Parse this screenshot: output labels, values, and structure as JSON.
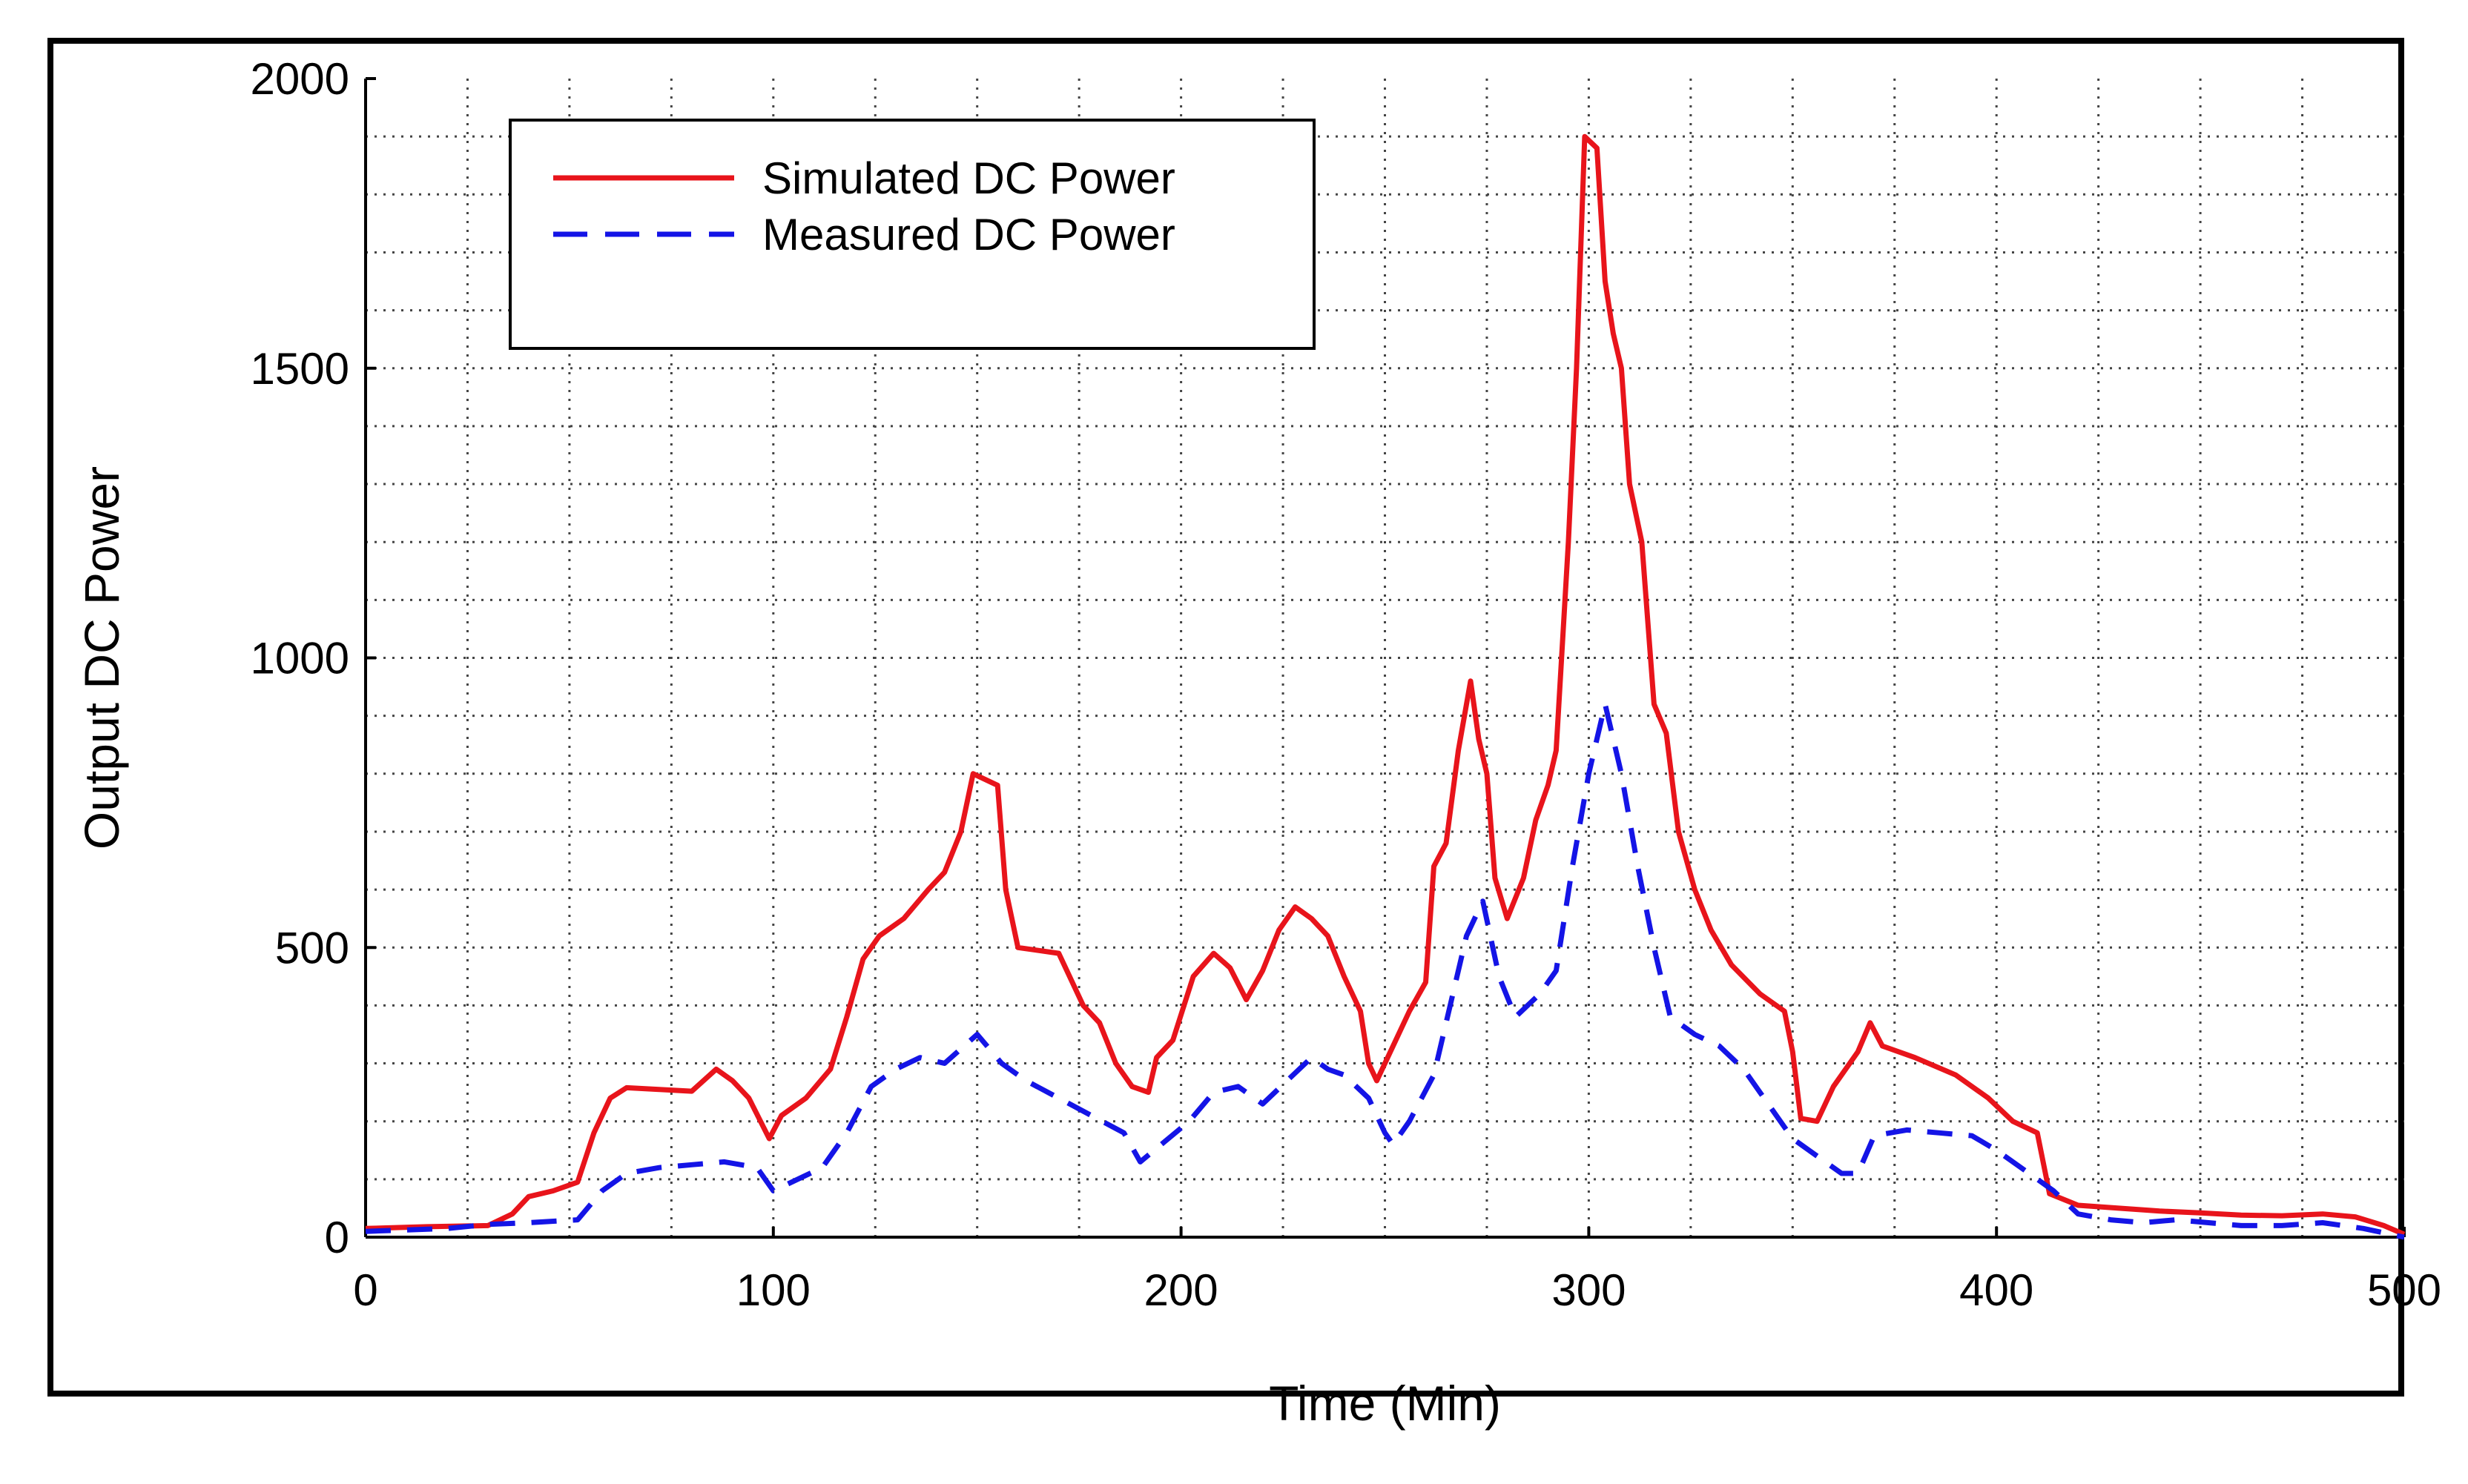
{
  "chart_data": {
    "type": "line",
    "title": "",
    "xlabel": "Time (Min)",
    "ylabel": "Output DC Power",
    "xlim": [
      0,
      500
    ],
    "ylim": [
      0,
      2000
    ],
    "xticks": [
      0,
      100,
      200,
      300,
      400,
      500
    ],
    "yticks": [
      0,
      500,
      1000,
      1500,
      2000
    ],
    "xtick_labels": [
      "0",
      "100",
      "200",
      "300",
      "400",
      "500"
    ],
    "ytick_labels": [
      "0",
      "500",
      "1000",
      "1500",
      "2000"
    ],
    "grid": true,
    "legend_position": "top-left",
    "series": [
      {
        "name": "Simulated DC Power",
        "color": "#e8141b",
        "style": "solid",
        "points": [
          [
            0,
            15
          ],
          [
            15,
            18
          ],
          [
            30,
            20
          ],
          [
            36,
            40
          ],
          [
            40,
            70
          ],
          [
            46,
            80
          ],
          [
            52,
            95
          ],
          [
            56,
            180
          ],
          [
            60,
            240
          ],
          [
            64,
            258
          ],
          [
            72,
            255
          ],
          [
            80,
            252
          ],
          [
            86,
            290
          ],
          [
            90,
            270
          ],
          [
            94,
            240
          ],
          [
            99,
            170
          ],
          [
            102,
            210
          ],
          [
            108,
            240
          ],
          [
            114,
            290
          ],
          [
            118,
            380
          ],
          [
            122,
            480
          ],
          [
            126,
            520
          ],
          [
            132,
            550
          ],
          [
            138,
            600
          ],
          [
            142,
            630
          ],
          [
            146,
            700
          ],
          [
            149,
            800
          ],
          [
            155,
            780
          ],
          [
            157,
            600
          ],
          [
            160,
            500
          ],
          [
            165,
            495
          ],
          [
            170,
            490
          ],
          [
            176,
            400
          ],
          [
            180,
            370
          ],
          [
            184,
            300
          ],
          [
            188,
            260
          ],
          [
            192,
            250
          ],
          [
            194,
            310
          ],
          [
            198,
            340
          ],
          [
            203,
            450
          ],
          [
            208,
            490
          ],
          [
            212,
            465
          ],
          [
            216,
            410
          ],
          [
            220,
            460
          ],
          [
            224,
            530
          ],
          [
            228,
            570
          ],
          [
            232,
            550
          ],
          [
            236,
            520
          ],
          [
            240,
            450
          ],
          [
            244,
            390
          ],
          [
            246,
            300
          ],
          [
            248,
            270
          ],
          [
            252,
            330
          ],
          [
            256,
            390
          ],
          [
            260,
            440
          ],
          [
            262,
            640
          ],
          [
            265,
            680
          ],
          [
            268,
            840
          ],
          [
            271,
            960
          ],
          [
            273,
            860
          ],
          [
            275,
            800
          ],
          [
            277,
            620
          ],
          [
            280,
            550
          ],
          [
            284,
            620
          ],
          [
            287,
            720
          ],
          [
            290,
            780
          ],
          [
            292,
            840
          ],
          [
            295,
            1200
          ],
          [
            297,
            1500
          ],
          [
            299,
            1900
          ],
          [
            302,
            1880
          ],
          [
            304,
            1650
          ],
          [
            306,
            1560
          ],
          [
            308,
            1500
          ],
          [
            310,
            1300
          ],
          [
            313,
            1200
          ],
          [
            316,
            920
          ],
          [
            319,
            870
          ],
          [
            322,
            700
          ],
          [
            326,
            600
          ],
          [
            330,
            530
          ],
          [
            335,
            470
          ],
          [
            342,
            420
          ],
          [
            348,
            390
          ],
          [
            350,
            320
          ],
          [
            352,
            205
          ],
          [
            356,
            200
          ],
          [
            360,
            260
          ],
          [
            366,
            320
          ],
          [
            369,
            370
          ],
          [
            372,
            330
          ],
          [
            380,
            310
          ],
          [
            390,
            280
          ],
          [
            398,
            240
          ],
          [
            404,
            200
          ],
          [
            410,
            180
          ],
          [
            413,
            75
          ],
          [
            420,
            55
          ],
          [
            430,
            50
          ],
          [
            440,
            45
          ],
          [
            450,
            42
          ],
          [
            460,
            38
          ],
          [
            470,
            37
          ],
          [
            480,
            40
          ],
          [
            488,
            35
          ],
          [
            495,
            20
          ],
          [
            500,
            5
          ]
        ]
      },
      {
        "name": "Measured DC Power",
        "color": "#1414e6",
        "style": "dashed",
        "points": [
          [
            0,
            10
          ],
          [
            20,
            15
          ],
          [
            30,
            22
          ],
          [
            40,
            25
          ],
          [
            52,
            30
          ],
          [
            58,
            80
          ],
          [
            64,
            110
          ],
          [
            72,
            120
          ],
          [
            80,
            125
          ],
          [
            88,
            130
          ],
          [
            96,
            120
          ],
          [
            100,
            80
          ],
          [
            106,
            100
          ],
          [
            112,
            120
          ],
          [
            118,
            180
          ],
          [
            124,
            260
          ],
          [
            130,
            290
          ],
          [
            136,
            310
          ],
          [
            142,
            300
          ],
          [
            150,
            350
          ],
          [
            156,
            300
          ],
          [
            162,
            270
          ],
          [
            170,
            240
          ],
          [
            178,
            210
          ],
          [
            186,
            180
          ],
          [
            190,
            130
          ],
          [
            196,
            165
          ],
          [
            202,
            200
          ],
          [
            208,
            250
          ],
          [
            214,
            260
          ],
          [
            220,
            230
          ],
          [
            226,
            270
          ],
          [
            232,
            310
          ],
          [
            236,
            290
          ],
          [
            240,
            280
          ],
          [
            246,
            240
          ],
          [
            250,
            180
          ],
          [
            252,
            160
          ],
          [
            256,
            200
          ],
          [
            262,
            280
          ],
          [
            266,
            400
          ],
          [
            270,
            520
          ],
          [
            274,
            580
          ],
          [
            278,
            450
          ],
          [
            282,
            380
          ],
          [
            288,
            420
          ],
          [
            292,
            460
          ],
          [
            296,
            640
          ],
          [
            300,
            800
          ],
          [
            304,
            920
          ],
          [
            308,
            800
          ],
          [
            312,
            640
          ],
          [
            316,
            500
          ],
          [
            320,
            380
          ],
          [
            326,
            350
          ],
          [
            332,
            330
          ],
          [
            338,
            290
          ],
          [
            344,
            230
          ],
          [
            350,
            170
          ],
          [
            356,
            140
          ],
          [
            362,
            110
          ],
          [
            366,
            110
          ],
          [
            370,
            175
          ],
          [
            378,
            185
          ],
          [
            386,
            180
          ],
          [
            394,
            175
          ],
          [
            400,
            150
          ],
          [
            408,
            110
          ],
          [
            414,
            80
          ],
          [
            420,
            40
          ],
          [
            428,
            30
          ],
          [
            436,
            25
          ],
          [
            444,
            30
          ],
          [
            452,
            25
          ],
          [
            460,
            20
          ],
          [
            470,
            20
          ],
          [
            480,
            25
          ],
          [
            490,
            15
          ],
          [
            500,
            0
          ]
        ]
      }
    ]
  }
}
